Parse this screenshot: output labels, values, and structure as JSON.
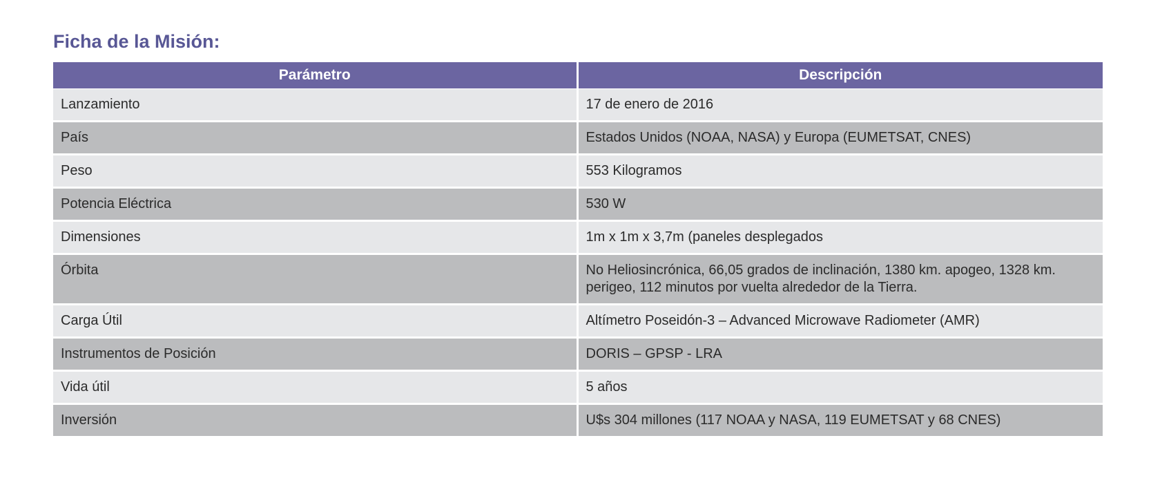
{
  "section": {
    "title": "Ficha de la Misión:"
  },
  "table": {
    "headers": [
      "Parámetro",
      "Descripción"
    ],
    "rows": [
      {
        "param": "Lanzamiento",
        "desc": "17 de enero de 2016"
      },
      {
        "param": "País",
        "desc": "Estados Unidos (NOAA, NASA) y Europa (EUMETSAT, CNES)"
      },
      {
        "param": "Peso",
        "desc": "553 Kilogramos"
      },
      {
        "param": "Potencia Eléctrica",
        "desc": "530 W"
      },
      {
        "param": "Dimensiones",
        "desc": "1m x 1m x 3,7m (paneles desplegados"
      },
      {
        "param": "Órbita",
        "desc": "No Heliosincrónica, 66,05 grados de inclinación, 1380 km. apogeo, 1328 km. perigeo, 112 minutos por vuelta alrededor de la Tierra."
      },
      {
        "param": "Carga Útil",
        "desc": "Altímetro Poseidón-3 – Advanced Microwave Radiometer (AMR)"
      },
      {
        "param": "Instrumentos de Posición",
        "desc": "DORIS – GPSP - LRA"
      },
      {
        "param": "Vida útil",
        "desc": "5 años"
      },
      {
        "param": "Inversión",
        "desc": "U$s 304 millones (117 NOAA y NASA, 119 EUMETSAT y 68 CNES)"
      }
    ]
  },
  "colors": {
    "title": "#585795",
    "header_bg": "#6b65a1",
    "row_light": "#e6e7e9",
    "row_dark": "#bbbcbe"
  }
}
